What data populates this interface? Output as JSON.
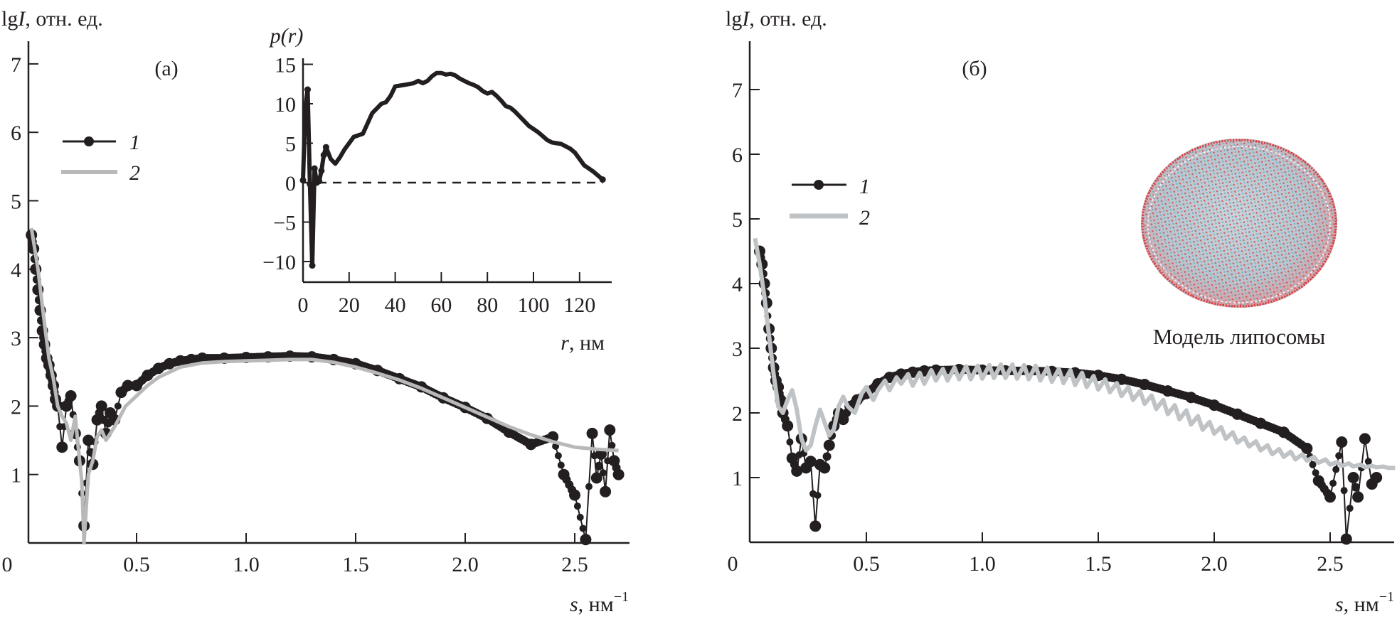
{
  "figure": {
    "panels": [
      "(a)",
      "(б)"
    ]
  },
  "chart_data": [
    {
      "id": "panel-a",
      "type": "scatter",
      "panel_label": "(а)",
      "ylabel_prefix": "lg",
      "ylabel_var": "I",
      "ylabel_unit": ", отн. ед.",
      "xlabel_var": "s",
      "xlabel_unit": ", нм",
      "xlabel_exp": "−1",
      "xlim": [
        0,
        2.75
      ],
      "ylim": [
        0,
        7.5
      ],
      "xticks": [
        0,
        0.5,
        1.0,
        1.5,
        2.0,
        2.5
      ],
      "xtick_labels": [
        "0",
        "0.5",
        "1.0",
        "1.5",
        "2.0",
        "2.5"
      ],
      "yticks": [
        1,
        2,
        3,
        4,
        5,
        6,
        7
      ],
      "ytick_labels": [
        "1",
        "2",
        "3",
        "4",
        "5",
        "6",
        "7"
      ],
      "legend": [
        {
          "key": "1",
          "style": "black-line-dots"
        },
        {
          "key": "2",
          "style": "gray-line"
        }
      ],
      "legend_position": "upper-left",
      "series": [
        {
          "name": "1",
          "kind": "experimental",
          "color": "#231f20",
          "x": [
            0.02,
            0.03,
            0.04,
            0.05,
            0.06,
            0.07,
            0.08,
            0.09,
            0.1,
            0.11,
            0.12,
            0.13,
            0.14,
            0.16,
            0.18,
            0.2,
            0.22,
            0.24,
            0.26,
            0.28,
            0.3,
            0.32,
            0.34,
            0.36,
            0.38,
            0.4,
            0.43,
            0.46,
            0.5,
            0.55,
            0.6,
            0.65,
            0.7,
            0.75,
            0.8,
            0.9,
            1.0,
            1.1,
            1.2,
            1.3,
            1.4,
            1.5,
            1.6,
            1.7,
            1.8,
            1.9,
            2.0,
            2.1,
            2.2,
            2.3,
            2.4,
            2.45,
            2.5,
            2.55,
            2.58,
            2.6,
            2.62,
            2.64,
            2.66,
            2.68,
            2.7
          ],
          "y": [
            4.5,
            4.3,
            4.0,
            3.7,
            3.4,
            3.1,
            2.9,
            2.7,
            2.6,
            2.45,
            2.3,
            2.1,
            2.0,
            1.4,
            2.0,
            2.15,
            1.6,
            1.2,
            0.25,
            1.5,
            1.15,
            1.8,
            2.0,
            1.6,
            1.9,
            1.8,
            2.2,
            2.3,
            2.3,
            2.45,
            2.55,
            2.62,
            2.66,
            2.68,
            2.7,
            2.7,
            2.71,
            2.72,
            2.73,
            2.72,
            2.68,
            2.62,
            2.52,
            2.4,
            2.28,
            2.12,
            1.98,
            1.82,
            1.62,
            1.44,
            1.55,
            1.0,
            0.7,
            0.05,
            1.6,
            0.95,
            1.3,
            0.75,
            1.65,
            1.2,
            1.0
          ]
        },
        {
          "name": "2",
          "kind": "fit",
          "color": "#b9b9b9",
          "x": [
            0.02,
            0.05,
            0.08,
            0.1,
            0.12,
            0.14,
            0.16,
            0.18,
            0.2,
            0.22,
            0.24,
            0.25,
            0.26,
            0.28,
            0.3,
            0.32,
            0.34,
            0.36,
            0.4,
            0.45,
            0.5,
            0.55,
            0.6,
            0.7,
            0.8,
            0.9,
            1.0,
            1.1,
            1.2,
            1.3,
            1.4,
            1.5,
            1.6,
            1.7,
            1.8,
            1.9,
            2.0,
            2.1,
            2.2,
            2.3,
            2.4,
            2.5,
            2.6,
            2.7
          ],
          "y": [
            4.6,
            4.0,
            3.2,
            2.7,
            2.4,
            2.0,
            1.85,
            1.75,
            1.5,
            1.85,
            1.2,
            0.9,
            0.0,
            1.0,
            1.2,
            1.55,
            1.65,
            1.5,
            1.7,
            2.0,
            2.15,
            2.3,
            2.42,
            2.57,
            2.63,
            2.65,
            2.66,
            2.67,
            2.68,
            2.68,
            2.64,
            2.57,
            2.48,
            2.38,
            2.26,
            2.12,
            1.98,
            1.84,
            1.7,
            1.58,
            1.48,
            1.4,
            1.37,
            1.35
          ]
        }
      ],
      "inset": {
        "type": "line",
        "ylabel": "p(r)",
        "xlabel_var": "r",
        "xlabel_unit": ", нм",
        "xlim": [
          0,
          135
        ],
        "ylim": [
          -12,
          16
        ],
        "xticks": [
          0,
          20,
          40,
          60,
          80,
          100,
          120
        ],
        "xtick_labels": [
          "0",
          "20",
          "40",
          "60",
          "80",
          "100",
          "120"
        ],
        "yticks": [
          15,
          10,
          5,
          0,
          -5,
          -10
        ],
        "ytick_labels": [
          "15",
          "10",
          "5",
          "0",
          "−5",
          "−10"
        ],
        "zero_line": "dashed",
        "x": [
          0,
          1,
          2,
          3,
          4,
          5,
          6,
          7,
          8,
          9,
          10,
          12,
          14,
          16,
          18,
          20,
          22,
          24,
          26,
          28,
          30,
          32,
          34,
          36,
          38,
          40,
          42,
          44,
          46,
          48,
          50,
          52,
          54,
          56,
          58,
          60,
          62,
          64,
          66,
          68,
          70,
          72,
          74,
          76,
          78,
          80,
          82,
          84,
          86,
          88,
          90,
          92,
          94,
          96,
          98,
          100,
          102,
          104,
          106,
          108,
          110,
          112,
          114,
          116,
          118,
          120,
          122,
          124,
          126,
          128,
          130
        ],
        "y": [
          0.3,
          9.5,
          11.8,
          -0.2,
          -10.5,
          1.8,
          0,
          0.2,
          1.5,
          3.5,
          4.5,
          3.0,
          2.4,
          3.2,
          4.2,
          5.0,
          5.8,
          6.0,
          6.2,
          7.5,
          8.8,
          9.4,
          10.0,
          10.2,
          11.0,
          12.2,
          12.3,
          12.4,
          12.5,
          12.6,
          12.9,
          12.6,
          12.9,
          13.5,
          13.9,
          13.9,
          13.7,
          13.8,
          13.6,
          13.2,
          12.9,
          12.6,
          12.4,
          12.1,
          11.6,
          11.3,
          11.5,
          11.0,
          10.4,
          9.7,
          9.5,
          9.0,
          8.4,
          7.8,
          7.2,
          6.8,
          6.4,
          5.9,
          5.4,
          5.1,
          5.0,
          4.9,
          4.6,
          4.3,
          3.8,
          3.0,
          2.2,
          1.8,
          1.4,
          0.9,
          0.4
        ]
      }
    },
    {
      "id": "panel-b",
      "type": "scatter",
      "panel_label": "(б)",
      "ylabel_prefix": "lg",
      "ylabel_var": "I",
      "ylabel_unit": ", отн. ед.",
      "xlabel_var": "s",
      "xlabel_unit": ", нм",
      "xlabel_exp": "−1",
      "xlim": [
        0,
        2.8
      ],
      "ylim": [
        0,
        8.0
      ],
      "xticks": [
        0,
        0.5,
        1.0,
        1.5,
        2.0,
        2.5
      ],
      "xtick_labels": [
        "0",
        "0.5",
        "1.0",
        "1.5",
        "2.0",
        "2.5"
      ],
      "yticks": [
        1,
        2,
        3,
        4,
        5,
        6,
        7
      ],
      "ytick_labels": [
        "1",
        "2",
        "3",
        "4",
        "5",
        "6",
        "7"
      ],
      "legend": [
        {
          "key": "1",
          "style": "black-line-dots"
        },
        {
          "key": "2",
          "style": "gray-line"
        }
      ],
      "legend_position": "middle-left",
      "annotation": "Модель липосомы",
      "series": [
        {
          "name": "1",
          "kind": "experimental",
          "color": "#231f20",
          "x": [
            0.04,
            0.05,
            0.06,
            0.07,
            0.08,
            0.09,
            0.1,
            0.11,
            0.12,
            0.13,
            0.14,
            0.16,
            0.18,
            0.2,
            0.22,
            0.24,
            0.26,
            0.28,
            0.3,
            0.32,
            0.34,
            0.36,
            0.38,
            0.4,
            0.43,
            0.46,
            0.5,
            0.55,
            0.6,
            0.65,
            0.7,
            0.75,
            0.8,
            0.9,
            1.0,
            1.1,
            1.2,
            1.3,
            1.4,
            1.5,
            1.6,
            1.7,
            1.8,
            1.9,
            2.0,
            2.1,
            2.2,
            2.3,
            2.4,
            2.45,
            2.5,
            2.55,
            2.57,
            2.6,
            2.62,
            2.65,
            2.68,
            2.7
          ],
          "y": [
            4.5,
            4.3,
            4.0,
            3.7,
            3.3,
            3.0,
            2.7,
            2.5,
            2.4,
            2.2,
            2.0,
            1.8,
            1.3,
            1.1,
            1.6,
            1.15,
            1.25,
            0.25,
            1.2,
            1.15,
            1.5,
            1.8,
            2.0,
            1.9,
            2.1,
            2.2,
            2.3,
            2.45,
            2.55,
            2.6,
            2.63,
            2.65,
            2.66,
            2.67,
            2.66,
            2.65,
            2.65,
            2.64,
            2.62,
            2.58,
            2.52,
            2.44,
            2.34,
            2.24,
            2.12,
            1.98,
            1.84,
            1.7,
            1.45,
            0.95,
            0.7,
            1.55,
            0.05,
            1.0,
            0.7,
            1.6,
            0.9,
            1.0
          ]
        },
        {
          "name": "2",
          "kind": "fit",
          "color": "#bfc3c6",
          "x": [
            0.02,
            0.04,
            0.06,
            0.08,
            0.1,
            0.12,
            0.14,
            0.16,
            0.18,
            0.2,
            0.22,
            0.24,
            0.26,
            0.28,
            0.3,
            0.32,
            0.34,
            0.36,
            0.38,
            0.4,
            0.42,
            0.45,
            0.48,
            0.5,
            0.53,
            0.55,
            0.58,
            0.6,
            0.63,
            0.65,
            0.68,
            0.7,
            0.73,
            0.75,
            0.78,
            0.8,
            0.83,
            0.85,
            0.88,
            0.9,
            0.93,
            0.95,
            0.98,
            1.0,
            1.03,
            1.05,
            1.08,
            1.1,
            1.13,
            1.15,
            1.18,
            1.2,
            1.23,
            1.25,
            1.28,
            1.3,
            1.33,
            1.35,
            1.38,
            1.4,
            1.43,
            1.45,
            1.48,
            1.5,
            1.53,
            1.55,
            1.58,
            1.6,
            1.63,
            1.65,
            1.68,
            1.7,
            1.73,
            1.75,
            1.78,
            1.8,
            1.83,
            1.85,
            1.88,
            1.9,
            1.93,
            1.95,
            1.98,
            2.0,
            2.03,
            2.05,
            2.08,
            2.1,
            2.13,
            2.15,
            2.18,
            2.2,
            2.23,
            2.25,
            2.28,
            2.3,
            2.33,
            2.35,
            2.38,
            2.4,
            2.43,
            2.45,
            2.48,
            2.5,
            2.53,
            2.55,
            2.58,
            2.6,
            2.63,
            2.65,
            2.68,
            2.7,
            2.73,
            2.75,
            2.78
          ],
          "y": [
            4.7,
            4.3,
            3.8,
            3.2,
            2.6,
            2.1,
            2.0,
            2.2,
            2.35,
            2.05,
            1.6,
            1.42,
            1.5,
            1.8,
            2.05,
            1.85,
            1.65,
            1.75,
            2.1,
            2.25,
            2.1,
            2.0,
            2.3,
            2.4,
            2.2,
            2.35,
            2.5,
            2.35,
            2.55,
            2.45,
            2.6,
            2.42,
            2.62,
            2.45,
            2.66,
            2.5,
            2.68,
            2.5,
            2.7,
            2.52,
            2.72,
            2.52,
            2.73,
            2.53,
            2.74,
            2.54,
            2.75,
            2.54,
            2.75,
            2.53,
            2.74,
            2.52,
            2.73,
            2.5,
            2.7,
            2.48,
            2.68,
            2.46,
            2.66,
            2.43,
            2.62,
            2.4,
            2.57,
            2.36,
            2.52,
            2.32,
            2.46,
            2.26,
            2.4,
            2.2,
            2.34,
            2.14,
            2.27,
            2.06,
            2.2,
            1.98,
            2.12,
            1.9,
            2.04,
            1.82,
            1.95,
            1.74,
            1.86,
            1.68,
            1.78,
            1.6,
            1.7,
            1.54,
            1.62,
            1.48,
            1.56,
            1.42,
            1.5,
            1.36,
            1.44,
            1.32,
            1.4,
            1.28,
            1.36,
            1.26,
            1.32,
            1.23,
            1.28,
            1.2,
            1.24,
            1.18,
            1.22,
            1.17,
            1.2,
            1.16,
            1.18,
            1.16,
            1.17,
            1.15,
            1.15
          ]
        }
      ]
    }
  ]
}
